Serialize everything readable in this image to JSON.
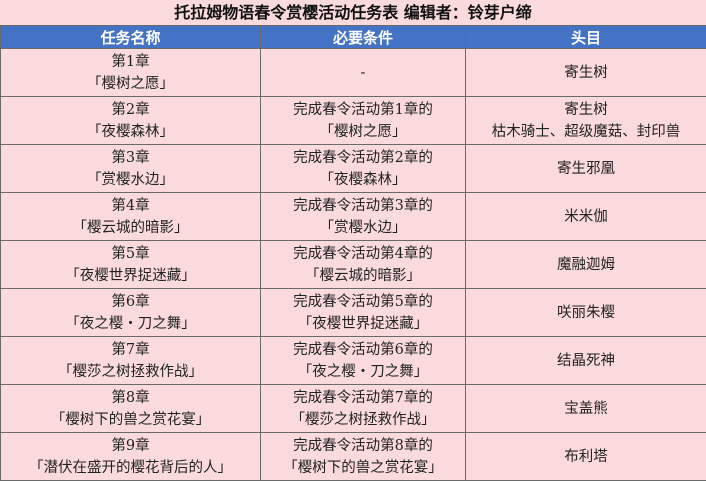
{
  "title": "托拉姆物语春令赏樱活动任务表 编辑者：铃芽户缔",
  "colors": {
    "header_bg": "#4472c4",
    "row_bg": "#fadadd"
  },
  "columns": [
    "任务名称",
    "必要条件",
    "头目"
  ],
  "rows": [
    {
      "chapter": "第1章",
      "name": "「樱树之愿」",
      "cond": [
        "-"
      ],
      "boss": [
        "寄生树"
      ]
    },
    {
      "chapter": "第2章",
      "name": "「夜樱森林」",
      "cond": [
        "完成春令活动第1章的",
        "「樱树之愿」"
      ],
      "boss": [
        "寄生树",
        "枯木骑士、超级魔菇、封印兽"
      ]
    },
    {
      "chapter": "第3章",
      "name": "「赏樱水边」",
      "cond": [
        "完成春令活动第2章的",
        "「夜樱森林」"
      ],
      "boss": [
        "寄生邪凰"
      ]
    },
    {
      "chapter": "第4章",
      "name": "「樱云城的暗影」",
      "cond": [
        "完成春令活动第3章的",
        "「赏樱水边」"
      ],
      "boss": [
        "米米伽"
      ]
    },
    {
      "chapter": "第5章",
      "name": "「夜樱世界捉迷藏」",
      "cond": [
        "完成春令活动第4章的",
        "「樱云城的暗影」"
      ],
      "boss": [
        "魔融迦姆"
      ]
    },
    {
      "chapter": "第6章",
      "name": "「夜之樱・刀之舞」",
      "cond": [
        "完成春令活动第5章的",
        "「夜樱世界捉迷藏」"
      ],
      "boss": [
        "咲丽朱樱"
      ]
    },
    {
      "chapter": "第7章",
      "name": "「樱莎之树拯救作战」",
      "cond": [
        "完成春令活动第6章的",
        "「夜之樱・刀之舞」"
      ],
      "boss": [
        "结晶死神"
      ]
    },
    {
      "chapter": "第8章",
      "name": "「樱树下的兽之赏花宴」",
      "cond": [
        "完成春令活动第7章的",
        "「樱莎之树拯救作战」"
      ],
      "boss": [
        "宝盖熊"
      ]
    },
    {
      "chapter": "第9章",
      "name": "「潜伏在盛开的樱花背后的人」",
      "cond": [
        "完成春令活动第8章的",
        "「樱树下的兽之赏花宴」"
      ],
      "boss": [
        "布利塔"
      ]
    }
  ]
}
